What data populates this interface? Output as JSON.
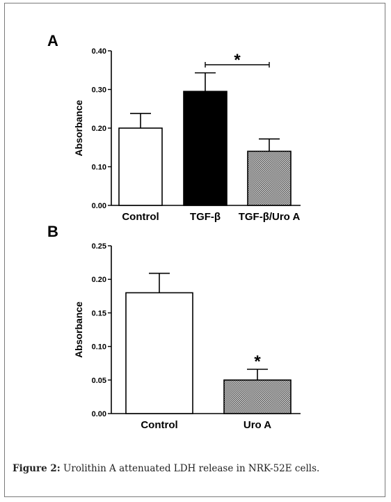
{
  "chart_data": [
    {
      "panel_label": "A",
      "type": "bar",
      "categories": [
        "Control",
        "TGF-β",
        "TGF-β/Uro A"
      ],
      "values": [
        0.2,
        0.295,
        0.14
      ],
      "errors": [
        0.038,
        0.048,
        0.032
      ],
      "fills": [
        "#ffffff",
        "#000000",
        "hatch"
      ],
      "ylabel": "Absorbance",
      "ylim": [
        0,
        0.4
      ],
      "yticks": [
        "0.00",
        "0.10",
        "0.20",
        "0.30",
        "0.40"
      ],
      "significance": {
        "from": "TGF-β",
        "to": "TGF-β/Uro A",
        "mark": "*"
      }
    },
    {
      "panel_label": "B",
      "type": "bar",
      "categories": [
        "Control",
        "Uro A"
      ],
      "values": [
        0.18,
        0.05
      ],
      "errors": [
        0.029,
        0.016
      ],
      "fills": [
        "#ffffff",
        "hatch"
      ],
      "ylabel": "Absorbance",
      "ylim": [
        0,
        0.25
      ],
      "yticks": [
        "0.00",
        "0.05",
        "0.10",
        "0.15",
        "0.20",
        "0.25"
      ],
      "significance": {
        "over": "Uro A",
        "mark": "*"
      }
    }
  ],
  "caption": {
    "label": "Figure 2:",
    "text": " Urolithin A attenuated LDH release in NRK-52E cells."
  }
}
